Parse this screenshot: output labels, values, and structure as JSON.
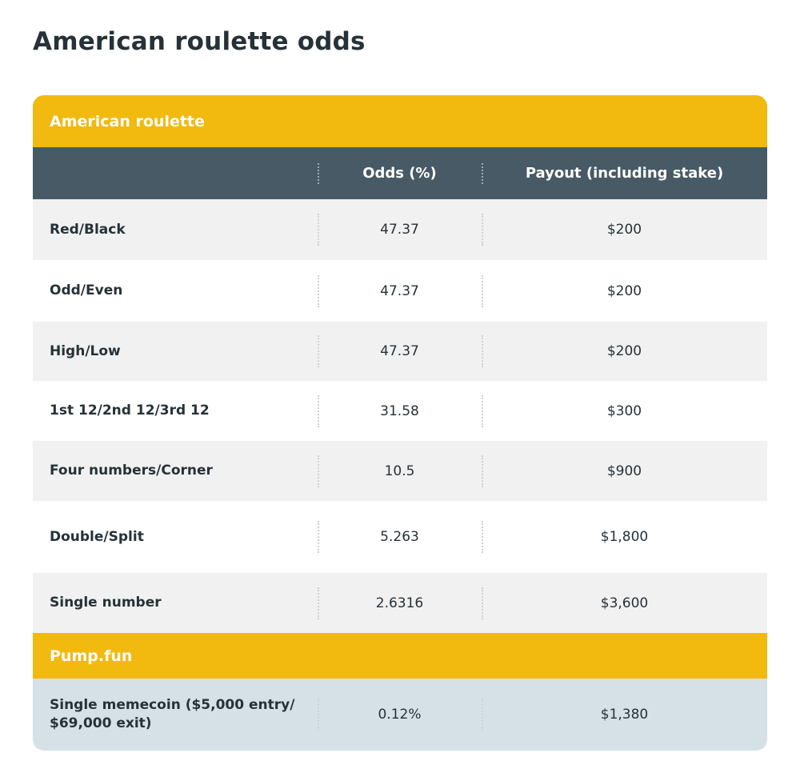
{
  "title": "American roulette odds",
  "table": {
    "section1_label": "American roulette",
    "headers": {
      "col1": "",
      "col2": "Odds (%)",
      "col3": "Payout (including stake)"
    },
    "rows": [
      {
        "bet": "Red/Black",
        "odds": "47.37",
        "payout": "$200"
      },
      {
        "bet": "Odd/Even",
        "odds": "47.37",
        "payout": "$200"
      },
      {
        "bet": "High/Low",
        "odds": "47.37",
        "payout": "$200"
      },
      {
        "bet": "1st 12/2nd 12/3rd 12",
        "odds": "31.58",
        "payout": "$300"
      },
      {
        "bet": "Four numbers/Corner",
        "odds": "10.5",
        "payout": "$900"
      },
      {
        "bet": "Double/Split",
        "odds": "5.263",
        "payout": "$1,800"
      },
      {
        "bet": "Single number",
        "odds": "2.6316",
        "payout": "$3,600"
      }
    ],
    "section2_label": "Pump.fun",
    "section2_rows": [
      {
        "bet": "Single memecoin ($5,000 entry/ $69,000 exit)",
        "odds": "0.12%",
        "payout": "$1,380"
      }
    ]
  },
  "colors": {
    "accent_yellow": "#f2b90f",
    "header_slate": "#475a65",
    "row_shade": "#f1f1f1",
    "highlight_row": "#d6e1e7",
    "text": "#263238"
  }
}
